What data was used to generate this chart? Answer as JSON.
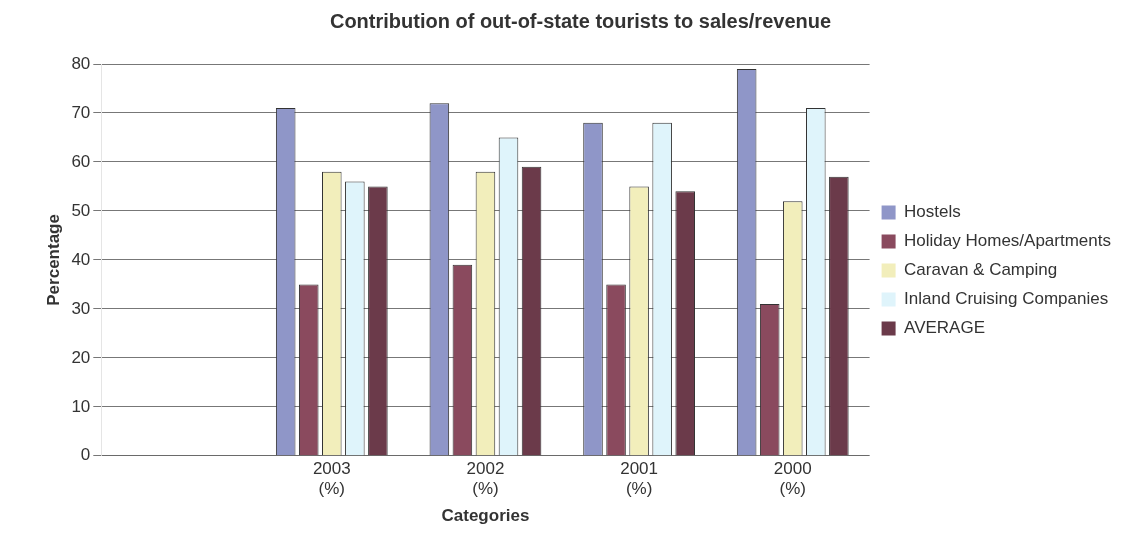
{
  "chart_data": {
    "type": "bar",
    "title": "Contribution of out-of-state tourists to sales/revenue",
    "xlabel": "Categories",
    "ylabel": "Percentage",
    "categories": [
      null,
      "2003 (%)",
      "2002 (%)",
      "2001 (%)",
      "2000 (%)"
    ],
    "series": [
      {
        "name": "Hostels",
        "color": "#8f96c8",
        "values": [
          null,
          71,
          72,
          68,
          79
        ]
      },
      {
        "name": "Holiday Homes/Apartments",
        "color": "#8a4a5e",
        "values": [
          null,
          35,
          39,
          35,
          31
        ]
      },
      {
        "name": "Caravan & Camping",
        "color": "#f2eebb",
        "values": [
          null,
          58,
          58,
          55,
          52
        ]
      },
      {
        "name": "Inland Cruising Companies",
        "color": "#dff4fb",
        "values": [
          null,
          56,
          65,
          68,
          71
        ]
      },
      {
        "name": "AVERAGE",
        "color": "#6b3a4a",
        "values": [
          null,
          55,
          59,
          54,
          57
        ]
      }
    ],
    "ylim": [
      0,
      80
    ],
    "yticks": [
      0,
      10,
      20,
      30,
      40,
      50,
      60,
      70,
      80
    ],
    "grid": "y",
    "legend": "right"
  }
}
